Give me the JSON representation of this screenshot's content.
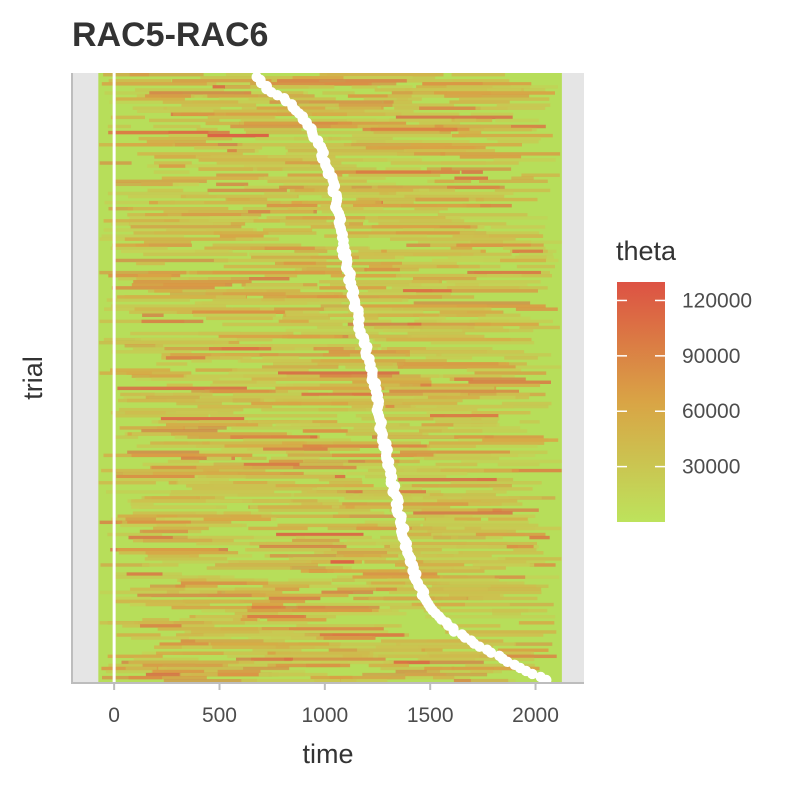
{
  "chart_data": {
    "type": "heatmap",
    "title": "RAC5-RAC6",
    "xlabel": "time",
    "ylabel": "trial",
    "x_ticks": [
      0,
      500,
      1000,
      1500,
      2000
    ],
    "xlim": [
      -200,
      2230
    ],
    "heat_x_range": [
      -75,
      2125
    ],
    "num_trials": 200,
    "event_line_x": 0,
    "rt_curve": [
      {
        "trial_frac": 0.0,
        "time": 680
      },
      {
        "trial_frac": 0.02,
        "time": 730
      },
      {
        "trial_frac": 0.04,
        "time": 820
      },
      {
        "trial_frac": 0.06,
        "time": 880
      },
      {
        "trial_frac": 0.08,
        "time": 920
      },
      {
        "trial_frac": 0.1,
        "time": 950
      },
      {
        "trial_frac": 0.12,
        "time": 980
      },
      {
        "trial_frac": 0.15,
        "time": 1010
      },
      {
        "trial_frac": 0.18,
        "time": 1040
      },
      {
        "trial_frac": 0.22,
        "time": 1060
      },
      {
        "trial_frac": 0.27,
        "time": 1080
      },
      {
        "trial_frac": 0.32,
        "time": 1110
      },
      {
        "trial_frac": 0.37,
        "time": 1140
      },
      {
        "trial_frac": 0.42,
        "time": 1170
      },
      {
        "trial_frac": 0.47,
        "time": 1210
      },
      {
        "trial_frac": 0.52,
        "time": 1240
      },
      {
        "trial_frac": 0.57,
        "time": 1260
      },
      {
        "trial_frac": 0.62,
        "time": 1290
      },
      {
        "trial_frac": 0.67,
        "time": 1320
      },
      {
        "trial_frac": 0.72,
        "time": 1350
      },
      {
        "trial_frac": 0.77,
        "time": 1380
      },
      {
        "trial_frac": 0.82,
        "time": 1420
      },
      {
        "trial_frac": 0.86,
        "time": 1470
      },
      {
        "trial_frac": 0.89,
        "time": 1530
      },
      {
        "trial_frac": 0.92,
        "time": 1620
      },
      {
        "trial_frac": 0.94,
        "time": 1720
      },
      {
        "trial_frac": 0.96,
        "time": 1820
      },
      {
        "trial_frac": 0.98,
        "time": 1930
      },
      {
        "trial_frac": 1.0,
        "time": 2050
      }
    ],
    "legend": {
      "title": "theta",
      "placement": "right",
      "ticks": [
        120000,
        90000,
        60000,
        30000
      ],
      "range": [
        0,
        130000
      ],
      "colors": {
        "low": "#bde35c",
        "mid": "#d9a445",
        "high": "#dd5244"
      }
    },
    "colors": {
      "panel_background": "#e5e5e5",
      "base_fill": "#b7de5a",
      "event_line": "#ffffff",
      "rt_markers": "#ffffff",
      "axis": "#bdbdbd"
    }
  },
  "labels": {
    "x_ticks": [
      "0",
      "500",
      "1000",
      "1500",
      "2000"
    ],
    "legend_ticks": [
      "120000",
      "90000",
      "60000",
      "30000"
    ]
  }
}
